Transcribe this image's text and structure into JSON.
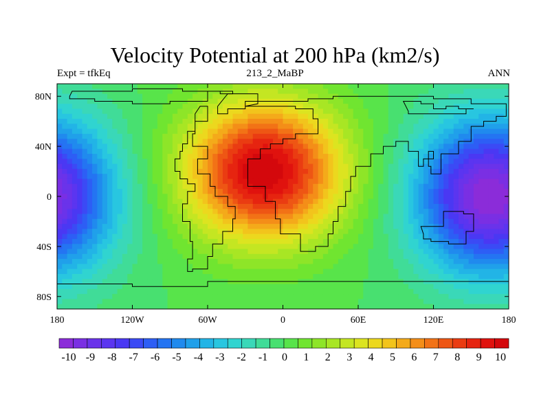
{
  "header": {
    "title": "Velocity Potential at 200 hPa (km2/s)",
    "left_label": "Expt = tfkEq",
    "center_label": "213_2_MaBP",
    "right_label": "ANN"
  },
  "map": {
    "projection": "cylindrical-equidistant",
    "lon_range": [
      -180,
      180
    ],
    "lat_range": [
      -90,
      90
    ],
    "lon_ticks": [
      {
        "value": -180,
        "label": "180"
      },
      {
        "value": -120,
        "label": "120W"
      },
      {
        "value": -60,
        "label": "60W"
      },
      {
        "value": 0,
        "label": "0"
      },
      {
        "value": 60,
        "label": "60E"
      },
      {
        "value": 120,
        "label": "120E"
      },
      {
        "value": 180,
        "label": "180"
      }
    ],
    "lat_ticks": [
      {
        "value": 80,
        "label": "80N"
      },
      {
        "value": 40,
        "label": "40N"
      },
      {
        "value": 0,
        "label": "0"
      },
      {
        "value": -40,
        "label": "40S"
      },
      {
        "value": -80,
        "label": "80S"
      }
    ],
    "field": {
      "max_center": [
        -15,
        20
      ],
      "max_value": 10,
      "min_center": [
        165,
        0
      ],
      "min_value": -10
    },
    "coastline_color": "#000000"
  },
  "colorbar": {
    "labels": [
      "-10",
      "-9",
      "-8",
      "-7",
      "-6",
      "-5",
      "-4",
      "-3",
      "-2",
      "-1",
      "0",
      "1",
      "2",
      "3",
      "4",
      "5",
      "6",
      "7",
      "8",
      "9",
      "10"
    ],
    "colors": [
      "#8b2cd9",
      "#7a2fe3",
      "#6a33ea",
      "#5b35f0",
      "#4a38f3",
      "#3b4af5",
      "#2d5ef5",
      "#2474f2",
      "#208aee",
      "#20a0ea",
      "#22b4e6",
      "#28c6e0",
      "#30d4d0",
      "#3ad8b8",
      "#40dc98",
      "#48e070",
      "#58e44a",
      "#70e530",
      "#8ee528",
      "#a8e624",
      "#c4e622",
      "#dce420",
      "#ecd81e",
      "#f2c41c",
      "#f4aa1a",
      "#f48e18",
      "#f27216",
      "#ee5614",
      "#ea3c12",
      "#e62410",
      "#e0120e",
      "#d4080c"
    ]
  }
}
